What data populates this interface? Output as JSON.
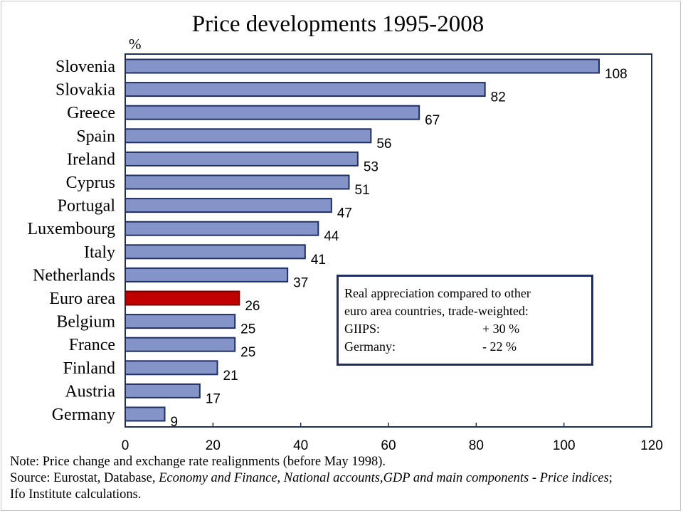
{
  "chart_data": {
    "type": "bar",
    "orientation": "horizontal",
    "title": "Price developments 1995-2008",
    "unit_label": "%",
    "categories": [
      "Slovenia",
      "Slovakia",
      "Greece",
      "Spain",
      "Ireland",
      "Cyprus",
      "Portugal",
      "Luxembourg",
      "Italy",
      "Netherlands",
      "Euro area",
      "Belgium",
      "France",
      "Finland",
      "Austria",
      "Germany"
    ],
    "values": [
      108,
      82,
      67,
      56,
      53,
      51,
      47,
      44,
      41,
      37,
      26,
      25,
      25,
      21,
      17,
      9
    ],
    "highlight_category": "Euro area",
    "xlim": [
      0,
      120
    ],
    "xticks": [
      "0",
      "20",
      "40",
      "60",
      "80",
      "100",
      "120"
    ],
    "colors": {
      "bar": "#8594c8",
      "bar_edge": "#1f2f63",
      "highlight": "#c00000",
      "highlight_edge": "#7a0000",
      "axis": "#1f2f63"
    }
  },
  "legend": {
    "line1": "Real appreciation compared to other",
    "line2": "euro area countries, trade-weighted:",
    "rows": [
      {
        "label": "GIIPS:",
        "value": "+ 30 %"
      },
      {
        "label": "Germany:",
        "value": "- 22 %"
      }
    ]
  },
  "notes": {
    "note": "Note: Price change and exchange rate realignments (before May 1998).",
    "source_prefix": "Source: Eurostat, Database, ",
    "source_italic_1": "Economy and Finance, National accounts,",
    "source_mid": "GDP and main components - Price indices",
    "source_suffix": ";",
    "source_line2": "Ifo Institute calculations."
  }
}
